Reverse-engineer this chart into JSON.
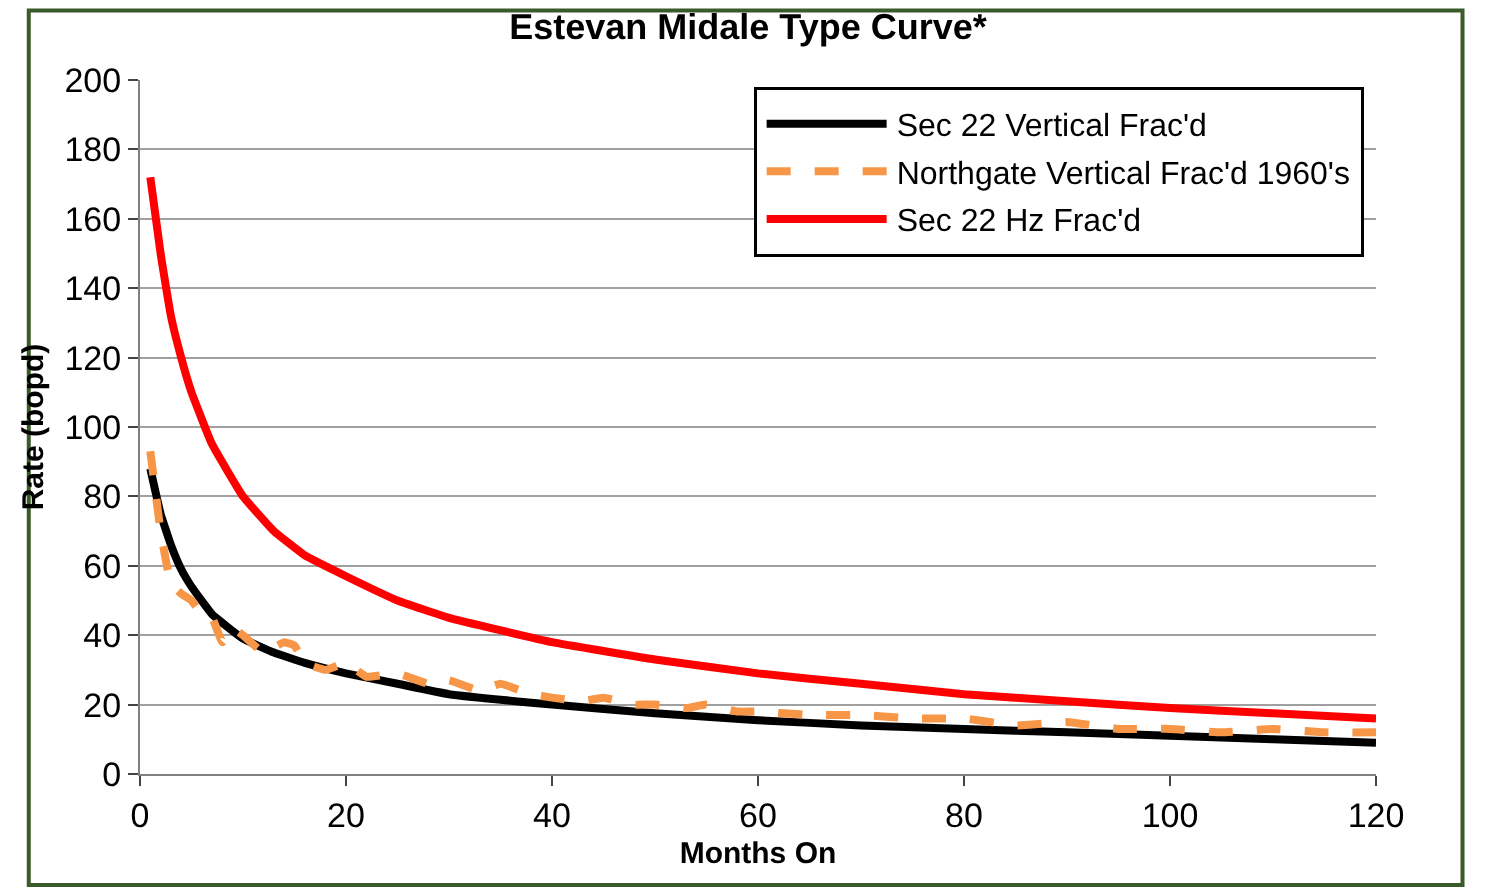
{
  "chart_data": {
    "type": "line",
    "title": "Estevan Midale Type Curve*",
    "xlabel": "Months On",
    "ylabel": "Rate (bopd)",
    "xlim": [
      0,
      120
    ],
    "xticks": [
      0,
      20,
      40,
      60,
      80,
      100,
      120
    ],
    "ylim": [
      0,
      200
    ],
    "yticks": [
      0,
      20,
      40,
      60,
      80,
      100,
      120,
      140,
      160,
      180,
      200
    ],
    "grid": "y",
    "legend": "top right",
    "series": [
      {
        "name": "Sec 22 Vertical Frac'd",
        "color": "#000000",
        "line_style": "solid",
        "x": [
          1,
          2,
          3,
          4,
          5,
          7,
          10,
          13,
          16,
          20,
          25,
          30,
          40,
          50,
          60,
          70,
          80,
          90,
          100,
          110,
          120
        ],
        "values": [
          88,
          75,
          66,
          59,
          54,
          46,
          39,
          35,
          32,
          29,
          26,
          23,
          20,
          17.5,
          15.5,
          14,
          13,
          12,
          11,
          10,
          9
        ]
      },
      {
        "name": "Northgate Vertical Frac'd 1960's",
        "color": "#f79646",
        "line_style": "dashed",
        "x": [
          1,
          2,
          3,
          4,
          5,
          6,
          7,
          8,
          9,
          10,
          12,
          14,
          15,
          16,
          18,
          20,
          22,
          25,
          28,
          30,
          33,
          35,
          38,
          40,
          43,
          45,
          48,
          50,
          53,
          55,
          58,
          60,
          65,
          70,
          75,
          80,
          85,
          90,
          95,
          100,
          105,
          110,
          115,
          120
        ],
        "values": [
          93,
          70,
          55,
          52,
          50,
          46,
          45,
          38,
          42,
          40,
          35,
          38,
          37,
          32,
          30,
          32,
          28,
          29,
          26,
          27,
          24,
          26,
          23,
          22,
          21,
          22,
          20,
          20,
          19,
          20,
          18,
          18,
          17,
          17,
          16,
          16,
          14,
          15,
          13,
          13,
          12,
          13,
          12,
          12
        ]
      },
      {
        "name": "Sec 22 Hz Frac'd",
        "color": "#ff0000",
        "line_style": "solid",
        "x": [
          1,
          2,
          3,
          4,
          5,
          7,
          10,
          13,
          16,
          20,
          25,
          30,
          40,
          50,
          60,
          70,
          80,
          90,
          100,
          110,
          120
        ],
        "values": [
          172,
          150,
          132,
          120,
          110,
          95,
          80,
          70,
          63,
          57,
          50,
          45,
          38,
          33,
          29,
          26,
          23,
          21,
          19,
          17.5,
          16
        ]
      }
    ]
  }
}
